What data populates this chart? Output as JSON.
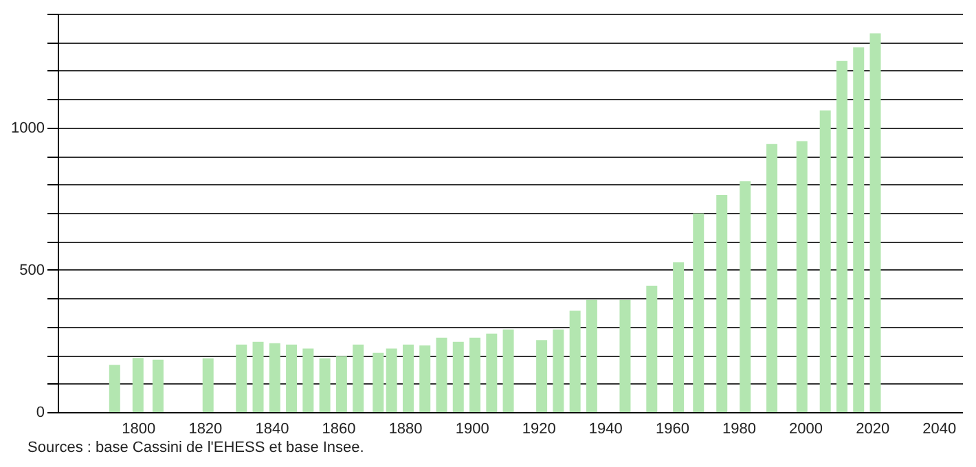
{
  "chart_data": {
    "type": "bar",
    "x": [
      1793,
      1800,
      1806,
      1821,
      1831,
      1836,
      1841,
      1846,
      1851,
      1856,
      1861,
      1866,
      1872,
      1876,
      1881,
      1886,
      1891,
      1896,
      1901,
      1906,
      1911,
      1921,
      1926,
      1931,
      1936,
      1946,
      1954,
      1962,
      1968,
      1975,
      1982,
      1990,
      1999,
      2006,
      2011,
      2016,
      2021
    ],
    "values": [
      166,
      190,
      184,
      189,
      237,
      247,
      242,
      237,
      223,
      189,
      197,
      237,
      208,
      223,
      237,
      234,
      261,
      247,
      261,
      276,
      290,
      253,
      290,
      356,
      394,
      394,
      444,
      526,
      698,
      763,
      811,
      942,
      952,
      1060,
      1234,
      1282,
      1331
    ],
    "color": "#b3e6b0",
    "xlim": [
      1778,
      2045
    ],
    "xticks": [
      1800,
      1820,
      1840,
      1860,
      1880,
      1900,
      1920,
      1940,
      1960,
      1980,
      2000,
      2020,
      2040
    ],
    "ylim": [
      0,
      1400
    ],
    "yticks": [
      0,
      {
        "value": 100,
        "label": null
      },
      {
        "value": 200,
        "label": null
      },
      {
        "value": 300,
        "label": null
      },
      {
        "value": 400,
        "label": null
      },
      500,
      {
        "value": 600,
        "label": null
      },
      {
        "value": 700,
        "label": null
      },
      {
        "value": 800,
        "label": null
      },
      {
        "value": 900,
        "label": null
      },
      1000,
      {
        "value": 1100,
        "label": null
      },
      {
        "value": 1200,
        "label": null
      },
      {
        "value": 1300,
        "label": null
      },
      {
        "value": 1400,
        "label": null
      }
    ],
    "grid": "y",
    "annotations": [
      "Sources : base Cassini de l'EHESS et base Insee."
    ]
  }
}
